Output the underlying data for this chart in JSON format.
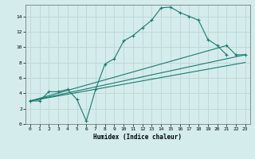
{
  "xlabel": "Humidex (Indice chaleur)",
  "background_color": "#d4ecec",
  "grid_color": "#c0d8d8",
  "line_color": "#1a7a6e",
  "xlim": [
    -0.5,
    23.5
  ],
  "ylim": [
    0,
    15.5
  ],
  "xticks": [
    0,
    1,
    2,
    3,
    4,
    5,
    6,
    7,
    8,
    9,
    10,
    11,
    12,
    13,
    14,
    15,
    16,
    17,
    18,
    19,
    20,
    21,
    22,
    23
  ],
  "yticks": [
    0,
    2,
    4,
    6,
    8,
    10,
    12,
    14
  ],
  "line1_x": [
    0,
    1,
    2,
    3,
    4,
    5,
    6,
    7,
    8,
    9,
    10,
    11,
    12,
    13,
    14,
    15,
    16,
    17,
    18,
    19,
    20,
    21
  ],
  "line1_y": [
    3,
    3,
    4.2,
    4.2,
    4.5,
    3.2,
    0.4,
    4.5,
    7.8,
    8.5,
    10.8,
    11.5,
    12.5,
    13.5,
    15.1,
    15.2,
    14.5,
    14.0,
    13.5,
    11.0,
    10.2,
    9.0
  ],
  "line2_x": [
    0,
    21,
    22,
    23
  ],
  "line2_y": [
    3,
    10.2,
    9.0,
    9.0
  ],
  "line3_x": [
    0,
    23
  ],
  "line3_y": [
    3,
    9.0
  ],
  "line4_x": [
    0,
    23
  ],
  "line4_y": [
    3,
    8.0
  ]
}
